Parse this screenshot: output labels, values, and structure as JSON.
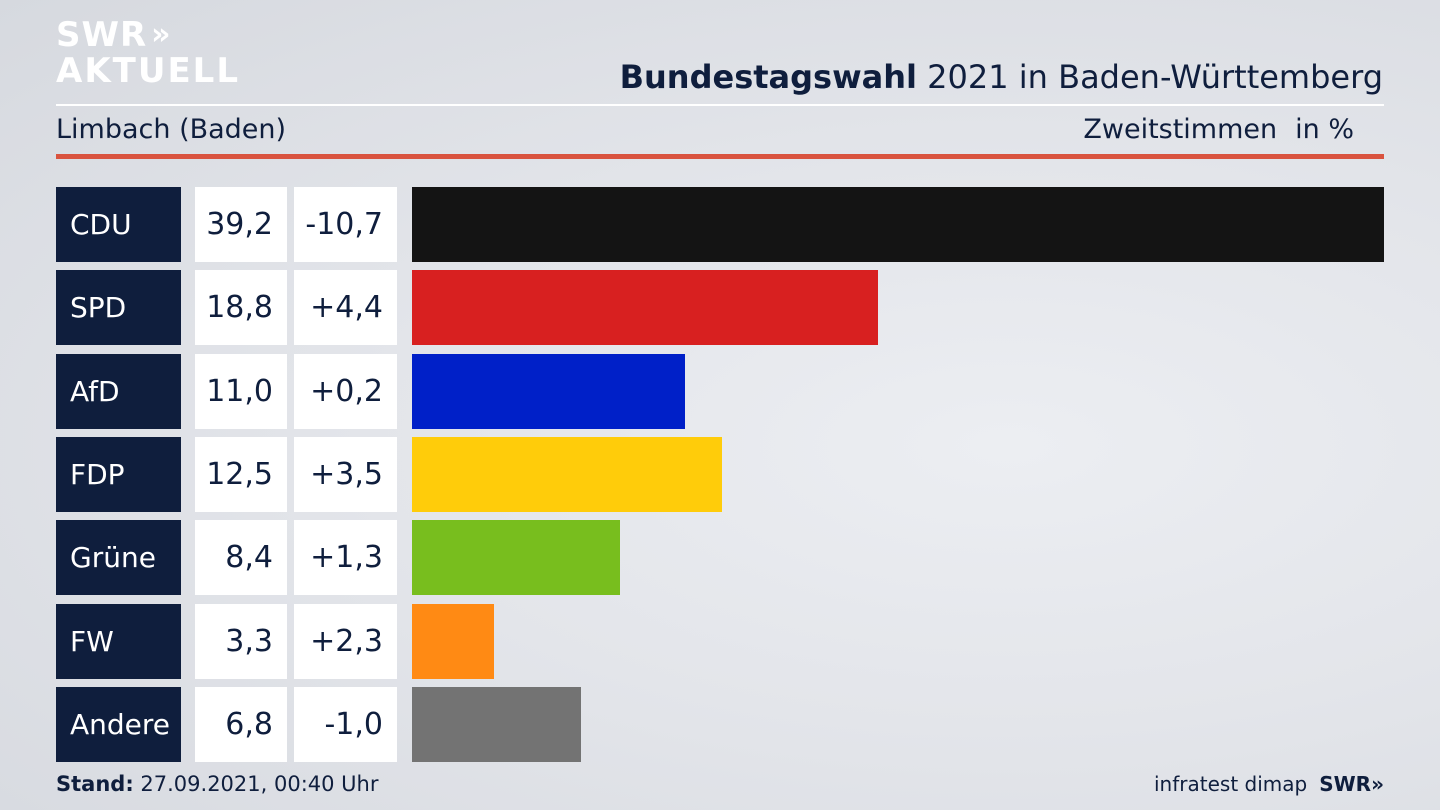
{
  "logo": {
    "line1": "SWR",
    "chevrons": "»",
    "line2": "AKTUELL"
  },
  "header": {
    "title_bold": "Bundestagswahl",
    "title_rest": " 2021 in Baden-Württemberg",
    "district": "Limbach (Baden)",
    "vote_type": "Zweitstimmen",
    "unit": "in %"
  },
  "chart_data": {
    "type": "bar",
    "orientation": "horizontal",
    "categories": [
      "CDU",
      "SPD",
      "AfD",
      "FDP",
      "Grüne",
      "FW",
      "Andere"
    ],
    "values": [
      39.2,
      18.8,
      11.0,
      12.5,
      8.4,
      3.3,
      6.8
    ],
    "value_labels": [
      "39,2",
      "18,8",
      "11,0",
      "12,5",
      "8,4",
      "3,3",
      "6,8"
    ],
    "changes": [
      -10.7,
      4.4,
      0.2,
      3.5,
      1.3,
      2.3,
      -1.0
    ],
    "change_labels": [
      "-10,7",
      "+4,4",
      "+0,2",
      "+3,5",
      "+1,3",
      "+2,3",
      "-1,0"
    ],
    "colors": [
      "#141414",
      "#d82020",
      "#0020c8",
      "#ffcc0a",
      "#78be1e",
      "#ff8a14",
      "#737373"
    ]
  },
  "footer": {
    "stand_label": "Stand:",
    "stand_value": " 27.09.2021, 00:40 Uhr",
    "source": "infratest dimap",
    "brand": "SWR»"
  }
}
